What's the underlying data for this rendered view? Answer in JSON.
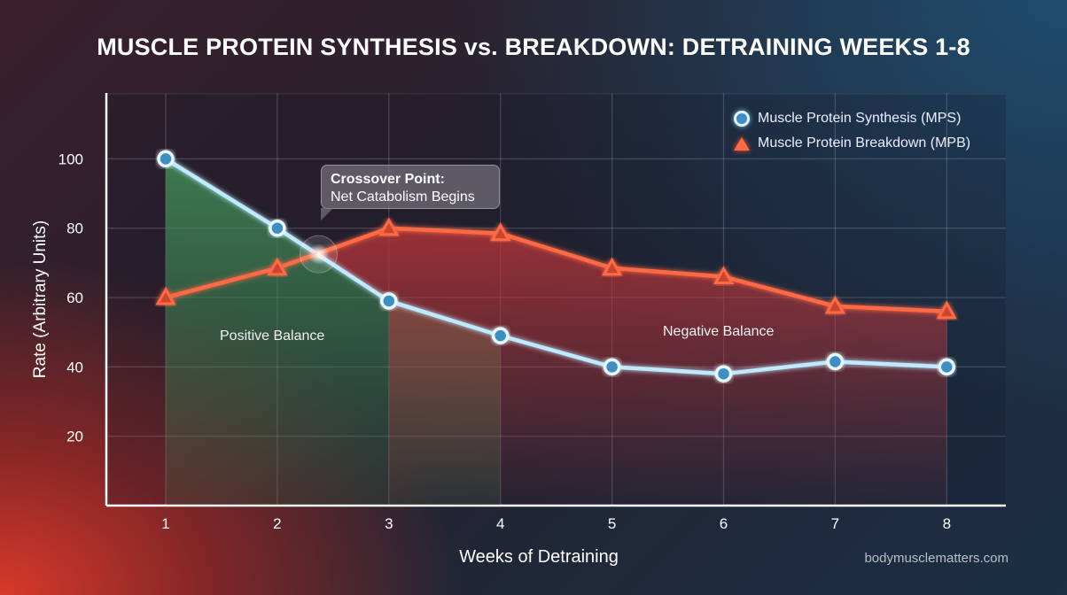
{
  "chart_data": {
    "type": "line",
    "title": "MUSCLE PROTEIN SYNTHESIS vs. BREAKDOWN: DETRAINING WEEKS 1-8",
    "xlabel": "Weeks of Detraining",
    "ylabel": "Rate (Arbitrary Units)",
    "x": [
      1,
      2,
      3,
      4,
      5,
      6,
      7,
      8
    ],
    "xticks": [
      "1",
      "2",
      "3",
      "4",
      "5",
      "6",
      "7",
      "8"
    ],
    "yticks": [
      "20",
      "40",
      "60",
      "80",
      "100"
    ],
    "ylim": [
      0,
      119
    ],
    "xlim": [
      0.47,
      8.5
    ],
    "grid": true,
    "legend_position": "top-right",
    "series": [
      {
        "name": "Muscle Protein Synthesis (MPS)",
        "marker": "circle",
        "color": "#bfe9ff",
        "values": [
          100,
          80,
          59,
          49,
          40,
          38,
          41.5,
          40
        ]
      },
      {
        "name": "Muscle Protein Breakdown (MPB)",
        "marker": "triangle",
        "color": "#ff6a45",
        "values": [
          60,
          68.5,
          80,
          78.5,
          68.5,
          66,
          57.5,
          56
        ]
      }
    ],
    "crossover": {
      "x": 2.37,
      "y": 72.5
    },
    "annotations": {
      "callout_title": "Crossover Point:",
      "callout_text": "Net Catabolism Begins",
      "positive_region": "Positive Balance",
      "negative_region": "Negative Balance"
    },
    "fill_colors": {
      "positive": "#3f8a55",
      "negative": "#c0363a"
    }
  },
  "watermark": "bodymusclematters.com"
}
